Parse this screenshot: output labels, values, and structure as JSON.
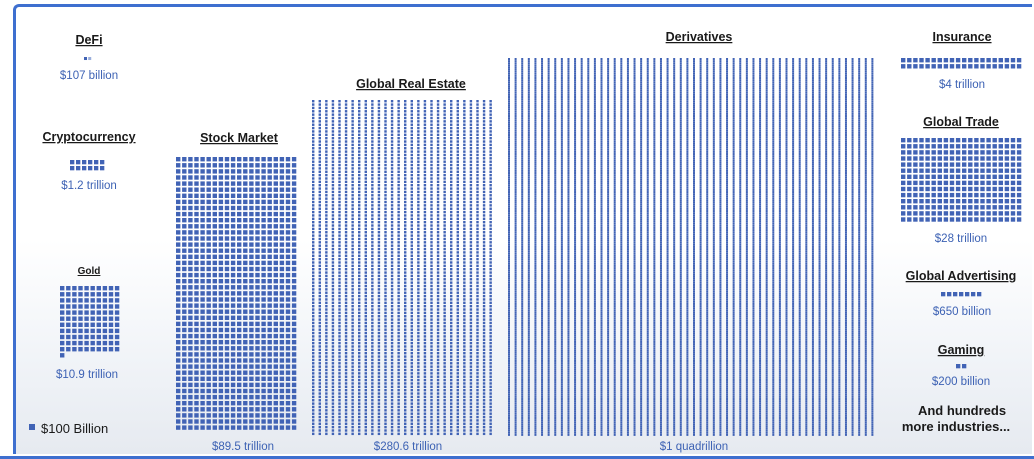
{
  "chart_data": {
    "type": "waffle",
    "unit": "$100 Billion",
    "legend": {
      "label": "$100 Billion",
      "color": "#4163b5"
    },
    "categories": [
      {
        "name": "DeFi",
        "value_billion": 107,
        "label": "$107 billion"
      },
      {
        "name": "Cryptocurrency",
        "value_billion": 1200,
        "label": "$1.2 trillion"
      },
      {
        "name": "Gold",
        "value_billion": 10900,
        "label": "$10.9 trillion"
      },
      {
        "name": "Stock Market",
        "value_billion": 89500,
        "label": "$89.5 trillion"
      },
      {
        "name": "Global Real Estate",
        "value_billion": 280600,
        "label": "$280.6 trillion"
      },
      {
        "name": "Derivatives",
        "value_billion": 1000000,
        "label": "$1 quadrillion"
      },
      {
        "name": "Insurance",
        "value_billion": 4000,
        "label": "$4 trillion"
      },
      {
        "name": "Global Trade",
        "value_billion": 28000,
        "label": "$28 trillion"
      },
      {
        "name": "Global Advertising",
        "value_billion": 650,
        "label": "$650 billion"
      },
      {
        "name": "Gaming",
        "value_billion": 200,
        "label": "$200 billion"
      }
    ],
    "note_lines": [
      "And hundreds",
      "more industries..."
    ],
    "colors": {
      "square": "#4163b5",
      "value_text": "#3d62b4",
      "frame": "#3e6fcf"
    }
  }
}
